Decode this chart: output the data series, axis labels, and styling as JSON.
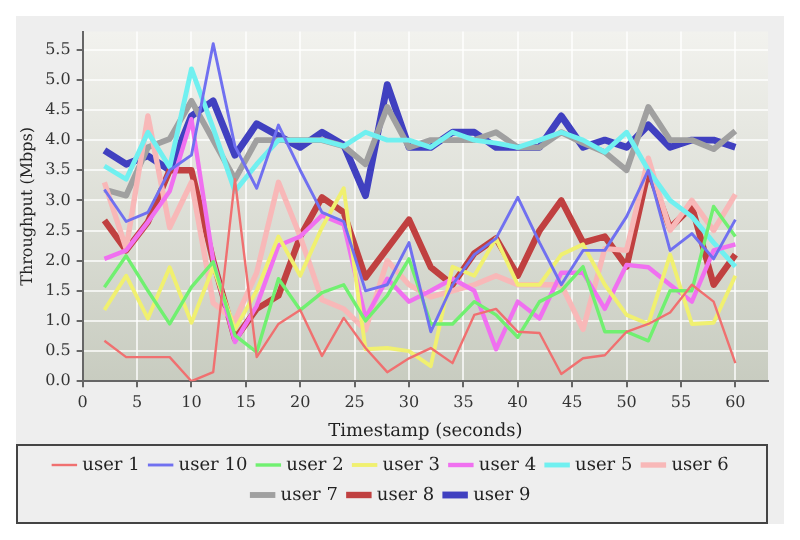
{
  "chart_data": {
    "type": "line",
    "xlabel": "Timestamp (seconds)",
    "ylabel": "Throughput (Mbps)",
    "x": [
      2,
      4,
      6,
      8,
      10,
      12,
      14,
      16,
      18,
      20,
      22,
      24,
      26,
      28,
      30,
      32,
      34,
      36,
      38,
      40,
      42,
      44,
      46,
      48,
      50,
      52,
      54,
      56,
      58,
      60
    ],
    "xlim": [
      0,
      63
    ],
    "xticks": [
      0,
      5,
      10,
      15,
      20,
      25,
      30,
      35,
      40,
      45,
      50,
      55,
      60
    ],
    "ylim": [
      0,
      5.8
    ],
    "yticks": [
      {
        "value": 0,
        "label": "0.0"
      },
      0.5,
      {
        "value": 1,
        "label": "1.0"
      },
      1.5,
      {
        "value": 2,
        "label": "2.0"
      },
      2.5,
      {
        "value": 3,
        "label": "3.0"
      },
      3.5,
      {
        "value": 4,
        "label": "4.0"
      },
      4.5,
      {
        "value": 5,
        "label": "5.0"
      },
      5.5
    ],
    "grid": true,
    "legend": "bottom",
    "marker": "none",
    "line_style": "solid",
    "series": [
      {
        "name": "user 1",
        "color": "#f07070",
        "values": [
          0.67,
          0.4,
          0.4,
          0.4,
          0.0,
          0.15,
          3.35,
          0.4,
          0.95,
          1.18,
          0.42,
          1.05,
          0.55,
          0.15,
          0.38,
          0.55,
          0.3,
          1.1,
          1.2,
          0.82,
          0.8,
          0.12,
          0.38,
          0.43,
          0.82,
          0.95,
          1.14,
          1.6,
          1.32,
          0.3
        ]
      },
      {
        "name": "user 10",
        "color": "#7070f0",
        "values": [
          3.18,
          2.65,
          2.8,
          3.5,
          3.75,
          5.6,
          3.9,
          3.2,
          4.25,
          3.5,
          2.8,
          2.65,
          1.5,
          1.6,
          2.3,
          0.82,
          1.6,
          2.1,
          2.37,
          3.05,
          2.3,
          1.6,
          2.17,
          2.17,
          2.73,
          3.5,
          2.17,
          2.45,
          2.03,
          2.68
        ]
      },
      {
        "name": "user 2",
        "color": "#70f070",
        "values": [
          1.56,
          2.08,
          1.5,
          0.95,
          1.56,
          1.98,
          0.76,
          0.48,
          1.7,
          1.18,
          1.47,
          1.6,
          1.0,
          1.42,
          2.03,
          0.95,
          0.95,
          1.32,
          1.1,
          0.73,
          1.32,
          1.5,
          1.9,
          0.82,
          0.82,
          0.67,
          1.5,
          1.5,
          2.9,
          2.4
        ]
      },
      {
        "name": "user 3",
        "color": "#f0f070",
        "values": [
          1.18,
          1.75,
          1.04,
          1.89,
          0.97,
          1.89,
          0.86,
          1.5,
          2.4,
          1.75,
          2.55,
          3.2,
          0.53,
          0.55,
          0.5,
          0.25,
          1.9,
          1.75,
          2.37,
          1.6,
          1.6,
          2.1,
          2.27,
          1.6,
          1.1,
          0.95,
          2.1,
          0.95,
          0.97,
          1.75
        ]
      },
      {
        "name": "user 4",
        "color": "#f070f0",
        "values": [
          2.03,
          2.17,
          2.64,
          3.15,
          4.35,
          2.0,
          0.65,
          1.25,
          2.25,
          2.4,
          2.75,
          2.6,
          1.05,
          1.7,
          1.32,
          1.5,
          1.7,
          1.5,
          0.53,
          1.32,
          1.04,
          1.8,
          1.8,
          1.2,
          1.93,
          1.89,
          1.6,
          1.32,
          2.17,
          2.27
        ]
      },
      {
        "name": "user 5",
        "color": "#70f0f0",
        "values": [
          3.57,
          3.35,
          4.13,
          3.55,
          5.18,
          4.2,
          3.15,
          3.6,
          4.0,
          4.0,
          4.0,
          3.9,
          4.13,
          4.0,
          4.0,
          3.88,
          4.13,
          4.0,
          3.95,
          3.88,
          4.0,
          4.13,
          4.0,
          3.8,
          4.13,
          3.5,
          3.0,
          2.73,
          2.3,
          1.9
        ]
      },
      {
        "name": "user 6",
        "color": "#f8b8b8",
        "values": [
          3.3,
          2.2,
          4.4,
          2.55,
          3.3,
          1.3,
          1.0,
          1.8,
          3.3,
          2.4,
          1.35,
          1.2,
          0.85,
          2.0,
          1.6,
          1.4,
          1.5,
          1.6,
          1.75,
          1.6,
          1.6,
          1.6,
          0.86,
          2.2,
          2.17,
          3.7,
          2.5,
          3.0,
          2.5,
          3.1
        ]
      },
      {
        "name": "user 7",
        "color": "#a0a0a0",
        "values": [
          3.18,
          3.08,
          3.88,
          4.02,
          4.65,
          4.0,
          3.35,
          4.0,
          4.0,
          4.0,
          4.0,
          3.9,
          3.6,
          4.55,
          3.88,
          4.0,
          4.0,
          4.0,
          4.13,
          3.88,
          3.88,
          4.13,
          3.95,
          3.8,
          3.5,
          4.55,
          4.0,
          4.0,
          3.85,
          4.15
        ]
      },
      {
        "name": "user 8",
        "color": "#c04040",
        "values": [
          2.67,
          2.17,
          2.64,
          3.5,
          3.5,
          2.0,
          0.7,
          1.2,
          1.42,
          2.4,
          3.05,
          2.8,
          1.72,
          2.2,
          2.68,
          1.89,
          1.6,
          2.12,
          2.37,
          1.75,
          2.5,
          3.0,
          2.3,
          2.4,
          1.9,
          3.5,
          2.54,
          2.9,
          1.6,
          2.1
        ]
      },
      {
        "name": "user 9",
        "color": "#4040c0",
        "values": [
          3.83,
          3.6,
          3.74,
          3.5,
          4.4,
          4.65,
          3.75,
          4.27,
          4.07,
          3.88,
          4.13,
          3.92,
          3.08,
          4.92,
          3.88,
          3.88,
          4.13,
          4.13,
          3.88,
          3.88,
          3.88,
          4.4,
          3.88,
          4.0,
          3.88,
          4.25,
          3.88,
          4.0,
          4.0,
          3.88
        ]
      }
    ]
  }
}
